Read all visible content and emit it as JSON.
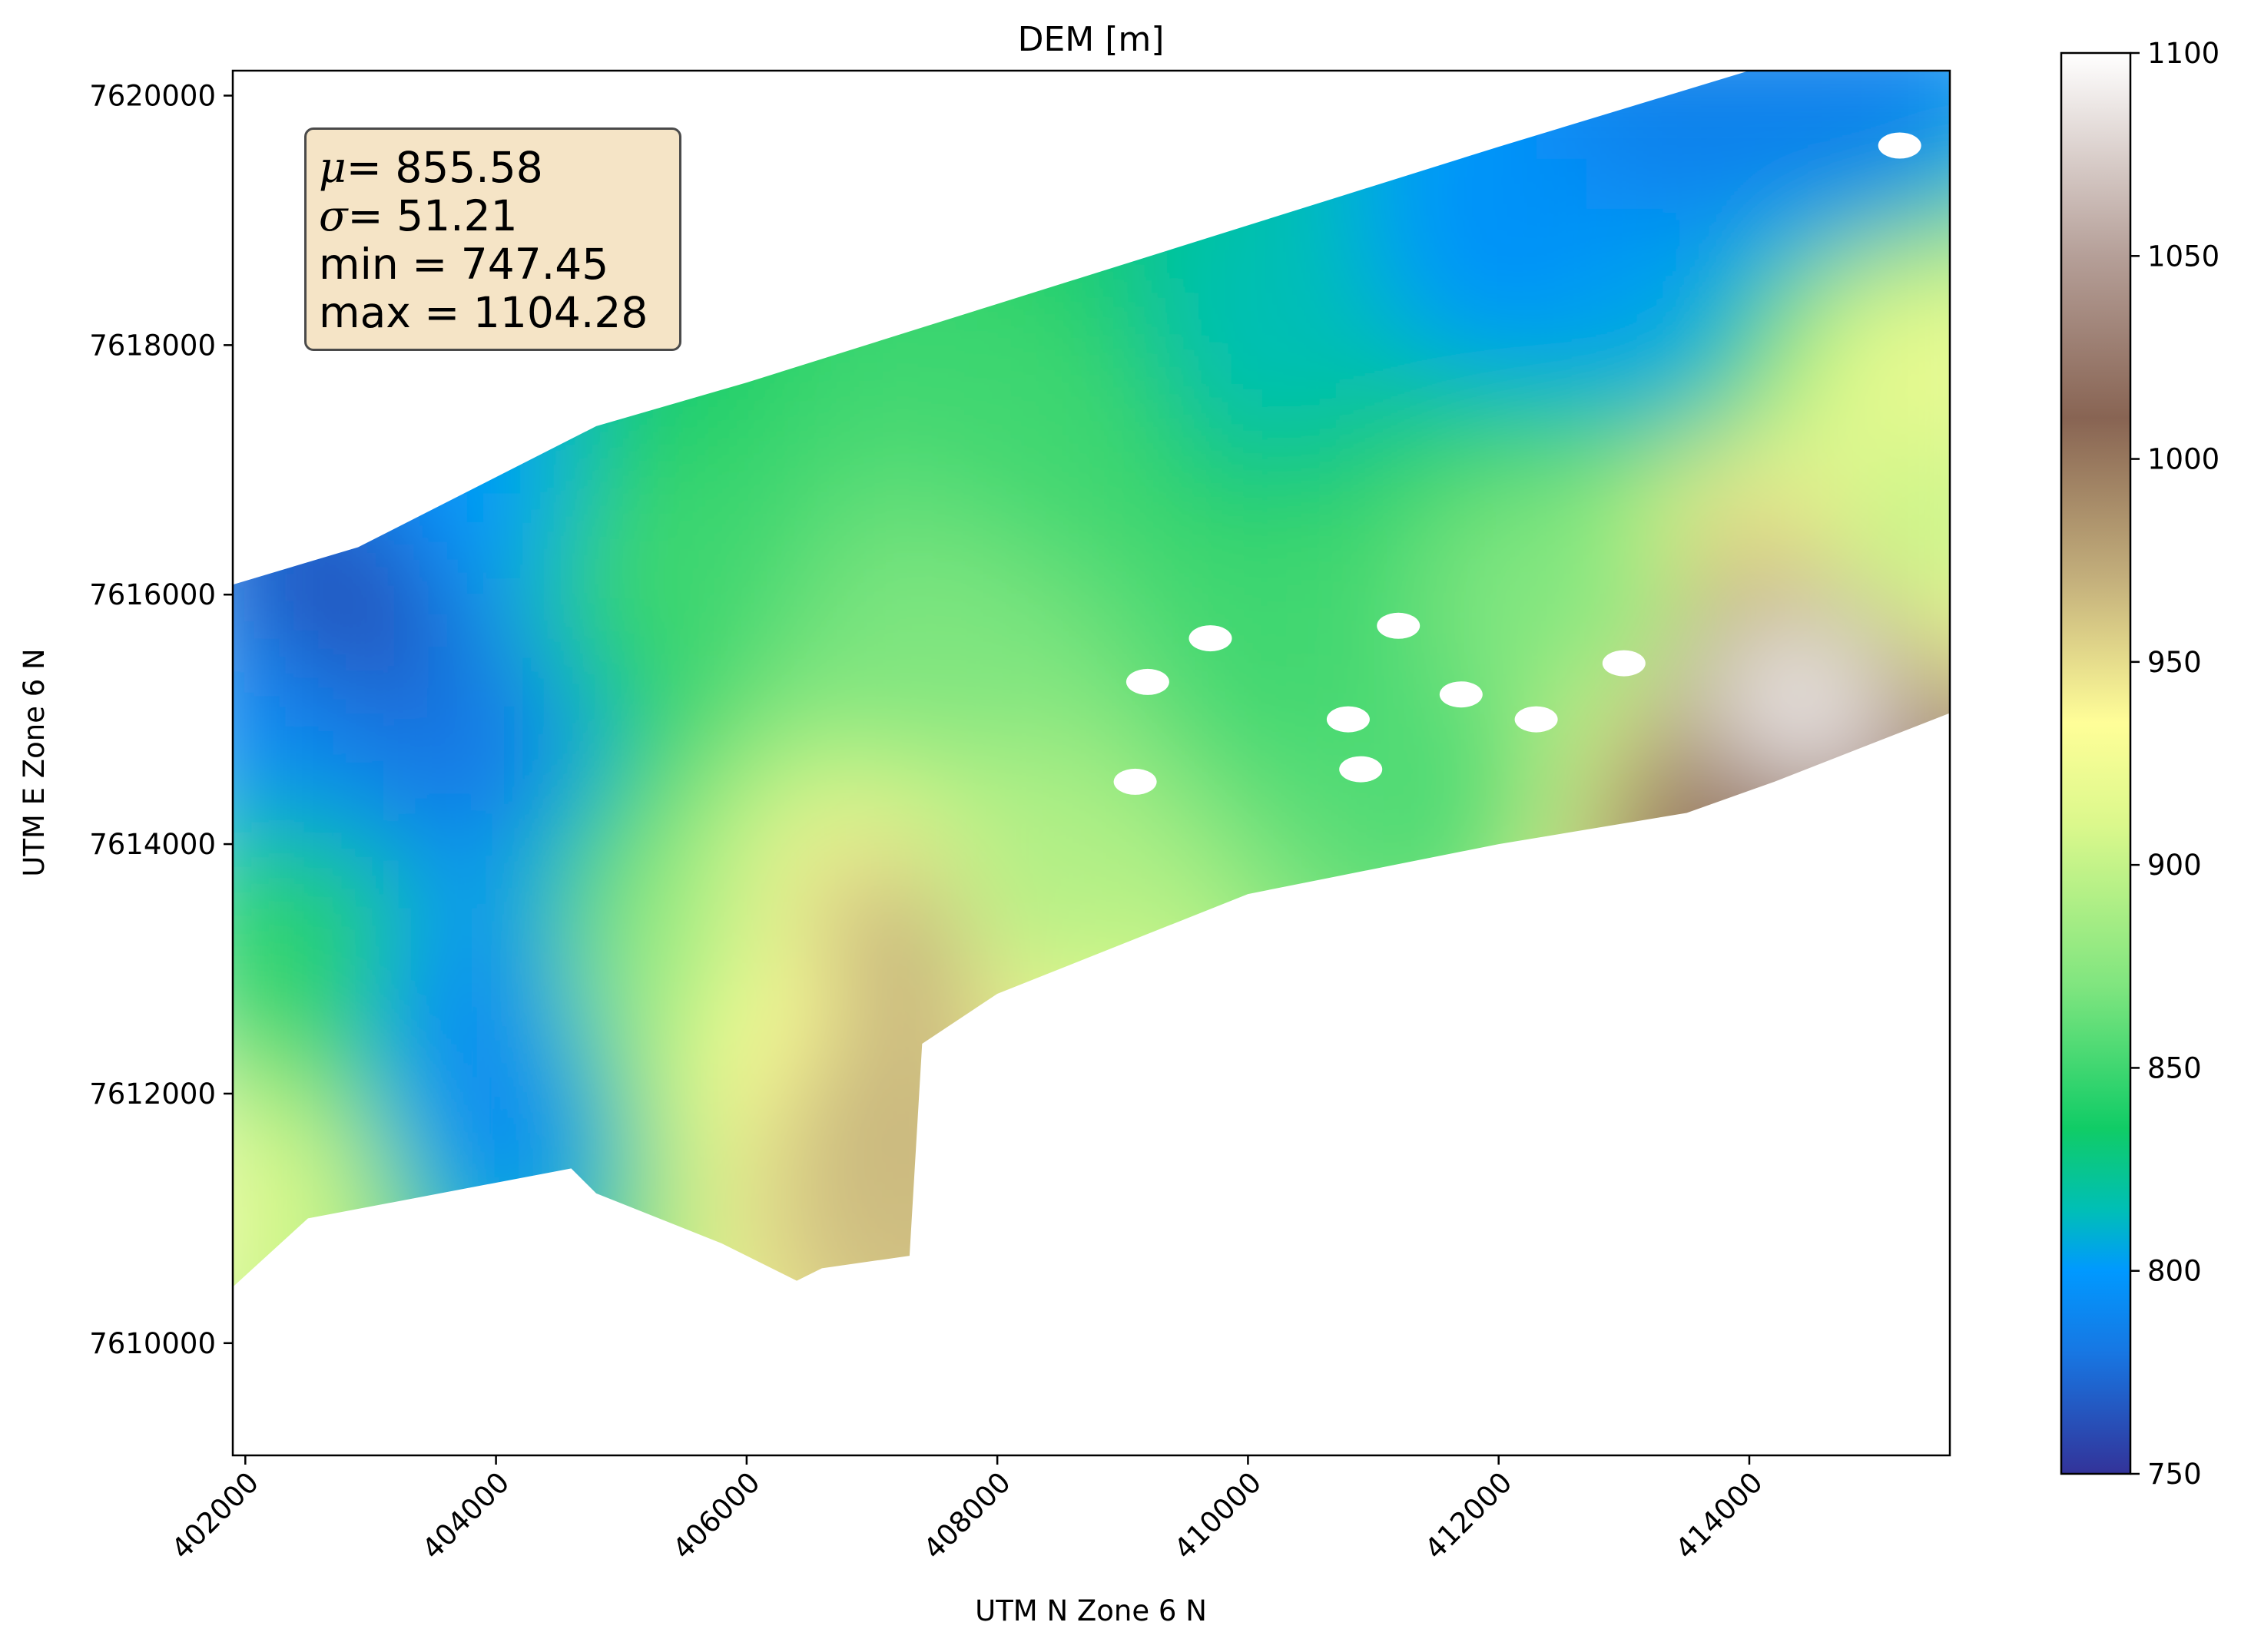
{
  "chart_data": {
    "type": "heatmap",
    "title": "DEM [m]",
    "xlabel": "UTM N Zone 6 N",
    "ylabel": "UTM E Zone 6 N",
    "xlim": [
      401900,
      415600
    ],
    "ylim": [
      7609100,
      7620200
    ],
    "x_ticks": [
      402000,
      404000,
      406000,
      408000,
      410000,
      412000,
      414000
    ],
    "y_ticks": [
      7610000,
      7612000,
      7614000,
      7616000,
      7618000,
      7620000
    ],
    "colormap": "terrain",
    "colorbar": {
      "ticks": [
        750,
        800,
        850,
        900,
        950,
        1000,
        1050,
        1100
      ],
      "range": [
        750,
        1100
      ],
      "stops": [
        {
          "value": 750,
          "color": "#333399"
        },
        {
          "value": 780,
          "color": "#1777e3"
        },
        {
          "value": 800,
          "color": "#0099ff"
        },
        {
          "value": 815,
          "color": "#00bfb6"
        },
        {
          "value": 835,
          "color": "#10cc66"
        },
        {
          "value": 870,
          "color": "#7fe57f"
        },
        {
          "value": 910,
          "color": "#dbf88c"
        },
        {
          "value": 935,
          "color": "#fffe98"
        },
        {
          "value": 970,
          "color": "#c4b07c"
        },
        {
          "value": 1010,
          "color": "#886453"
        },
        {
          "value": 1050,
          "color": "#b59f98"
        },
        {
          "value": 1100,
          "color": "#ffffff"
        }
      ]
    },
    "stats": {
      "mu_symbol": "μ",
      "mu_value": "= 855.58",
      "sigma_symbol": "σ",
      "sigma_value": "= 51.21",
      "min_line": "min = 747.45",
      "max_line": "max = 1104.28"
    },
    "survey_extent": [
      [
        401900,
        7616080
      ],
      [
        402900,
        7616380
      ],
      [
        404800,
        7617350
      ],
      [
        406000,
        7617700
      ],
      [
        408000,
        7618330
      ],
      [
        410000,
        7618960
      ],
      [
        412000,
        7619590
      ],
      [
        414000,
        7620200
      ],
      [
        415600,
        7620200
      ],
      [
        415600,
        7615050
      ],
      [
        414200,
        7614500
      ],
      [
        413500,
        7614250
      ],
      [
        412000,
        7614000
      ],
      [
        410000,
        7613600
      ],
      [
        408000,
        7612800
      ],
      [
        407400,
        7612400
      ],
      [
        407300,
        7610700
      ],
      [
        406600,
        7610600
      ],
      [
        406400,
        7610500
      ],
      [
        405800,
        7610800
      ],
      [
        404800,
        7611200
      ],
      [
        404600,
        7611400
      ],
      [
        402500,
        7611000
      ],
      [
        401900,
        7610450
      ]
    ],
    "surface_samples": [
      {
        "x": 402900,
        "y": 7615800,
        "z": 760
      },
      {
        "x": 402300,
        "y": 7615000,
        "z": 790
      },
      {
        "x": 403600,
        "y": 7614800,
        "z": 780
      },
      {
        "x": 403900,
        "y": 7612800,
        "z": 790
      },
      {
        "x": 404100,
        "y": 7611800,
        "z": 790
      },
      {
        "x": 402400,
        "y": 7613200,
        "z": 845
      },
      {
        "x": 402100,
        "y": 7611200,
        "z": 910
      },
      {
        "x": 404000,
        "y": 7616600,
        "z": 800
      },
      {
        "x": 405100,
        "y": 7616300,
        "z": 850
      },
      {
        "x": 405300,
        "y": 7612900,
        "z": 880
      },
      {
        "x": 406100,
        "y": 7612500,
        "z": 930
      },
      {
        "x": 406900,
        "y": 7612000,
        "z": 970
      },
      {
        "x": 407300,
        "y": 7613200,
        "z": 975
      },
      {
        "x": 407100,
        "y": 7611200,
        "z": 965
      },
      {
        "x": 408100,
        "y": 7613600,
        "z": 890
      },
      {
        "x": 407600,
        "y": 7615500,
        "z": 870
      },
      {
        "x": 408600,
        "y": 7617300,
        "z": 850
      },
      {
        "x": 410000,
        "y": 7618000,
        "z": 815
      },
      {
        "x": 412200,
        "y": 7618800,
        "z": 795
      },
      {
        "x": 413500,
        "y": 7619700,
        "z": 785
      },
      {
        "x": 414800,
        "y": 7619700,
        "z": 785
      },
      {
        "x": 413200,
        "y": 7618100,
        "z": 805
      },
      {
        "x": 410300,
        "y": 7615600,
        "z": 850
      },
      {
        "x": 411500,
        "y": 7614400,
        "z": 855
      },
      {
        "x": 412800,
        "y": 7616000,
        "z": 870
      },
      {
        "x": 415300,
        "y": 7617900,
        "z": 920
      },
      {
        "x": 414300,
        "y": 7615300,
        "z": 1100
      },
      {
        "x": 414000,
        "y": 7616200,
        "z": 960
      },
      {
        "x": 415200,
        "y": 7616500,
        "z": 900
      },
      {
        "x": 413700,
        "y": 7614000,
        "z": 1000
      }
    ],
    "no_data_patches": [
      [
        409200,
        7615300
      ],
      [
        409700,
        7615650
      ],
      [
        410800,
        7615000
      ],
      [
        411200,
        7615750
      ],
      [
        411700,
        7615200
      ],
      [
        412300,
        7615000
      ],
      [
        413000,
        7615450
      ],
      [
        415200,
        7619600
      ],
      [
        410900,
        7614600
      ],
      [
        409100,
        7614500
      ]
    ]
  }
}
